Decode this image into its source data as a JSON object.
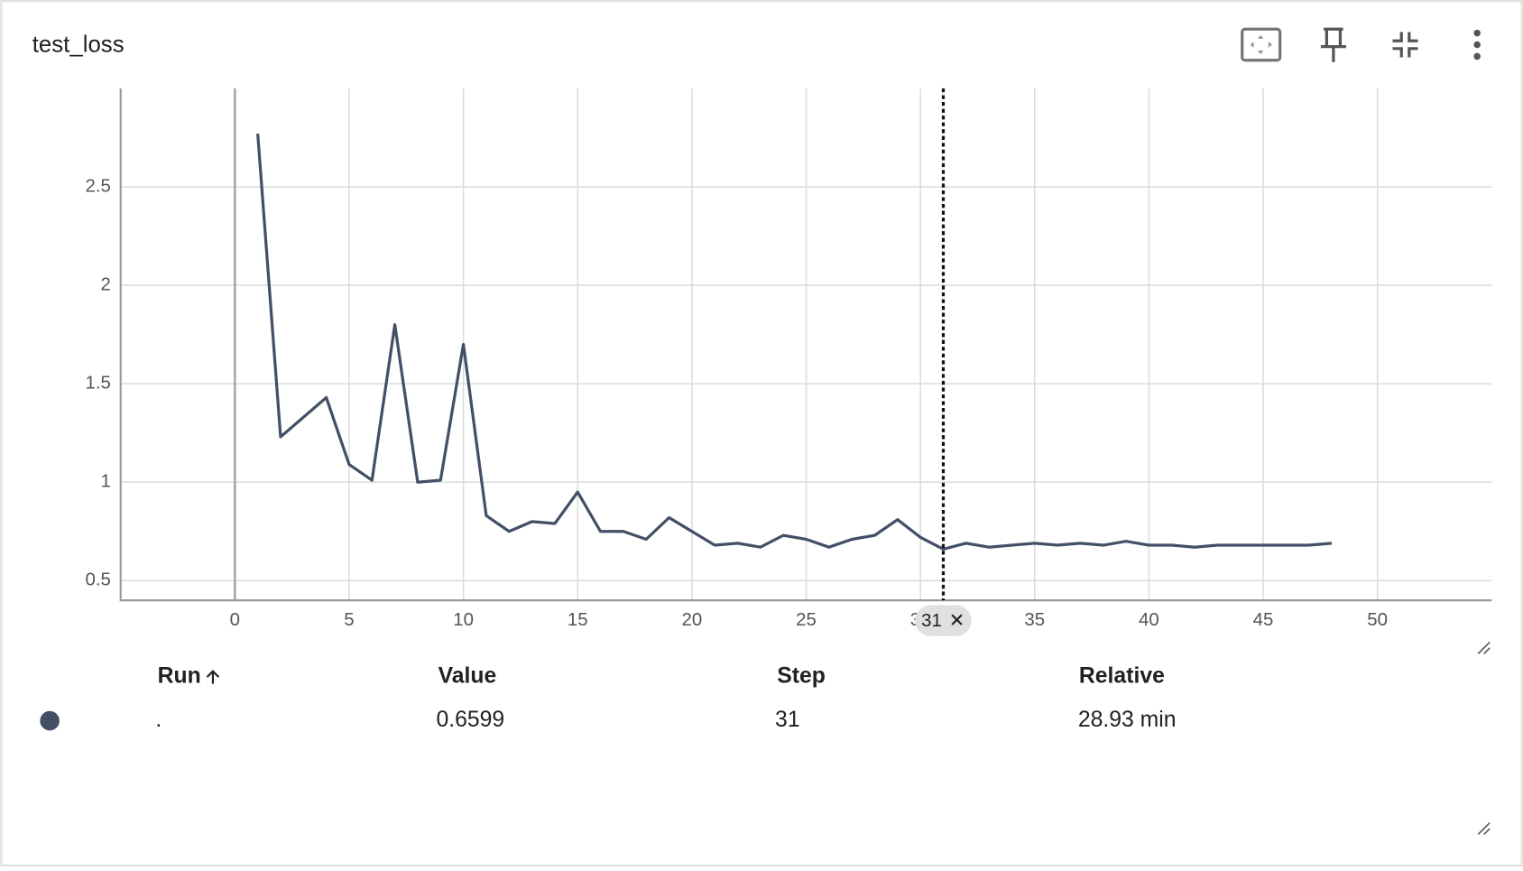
{
  "card": {
    "title": "test_loss"
  },
  "chart_data": {
    "type": "line",
    "x": [
      1,
      2,
      3,
      4,
      5,
      6,
      7,
      8,
      9,
      10,
      11,
      12,
      13,
      14,
      15,
      16,
      17,
      18,
      19,
      20,
      21,
      22,
      23,
      24,
      25,
      26,
      27,
      28,
      29,
      30,
      31,
      32,
      33,
      34,
      35,
      36,
      37,
      38,
      39,
      40,
      41,
      42,
      43,
      44,
      45,
      46,
      47,
      48
    ],
    "series": [
      {
        "name": ".",
        "color": "#425066",
        "values": [
          2.77,
          1.23,
          1.33,
          1.43,
          1.09,
          1.01,
          1.8,
          1.0,
          1.01,
          1.7,
          0.83,
          0.75,
          0.8,
          0.79,
          0.95,
          0.75,
          0.75,
          0.71,
          0.82,
          0.75,
          0.68,
          0.69,
          0.67,
          0.73,
          0.71,
          0.67,
          0.71,
          0.73,
          0.81,
          0.72,
          0.6599,
          0.69,
          0.67,
          0.68,
          0.69,
          0.68,
          0.69,
          0.68,
          0.7,
          0.68,
          0.68,
          0.67,
          0.68,
          0.68,
          0.68,
          0.68,
          0.68,
          0.69
        ]
      }
    ],
    "xlim": [
      -5,
      55
    ],
    "ylim": [
      0.4,
      3
    ],
    "xticks": [
      0,
      5,
      10,
      15,
      20,
      25,
      30,
      35,
      40,
      45,
      50
    ],
    "yticks": [
      0.5,
      1,
      1.5,
      2,
      2.5
    ],
    "grid": true,
    "cursor_step": 31
  },
  "table": {
    "headers": [
      "Run",
      "Value",
      "Step",
      "Relative"
    ],
    "rows": [
      [
        ".",
        "0.6599",
        "31",
        "28.93 min"
      ]
    ]
  }
}
